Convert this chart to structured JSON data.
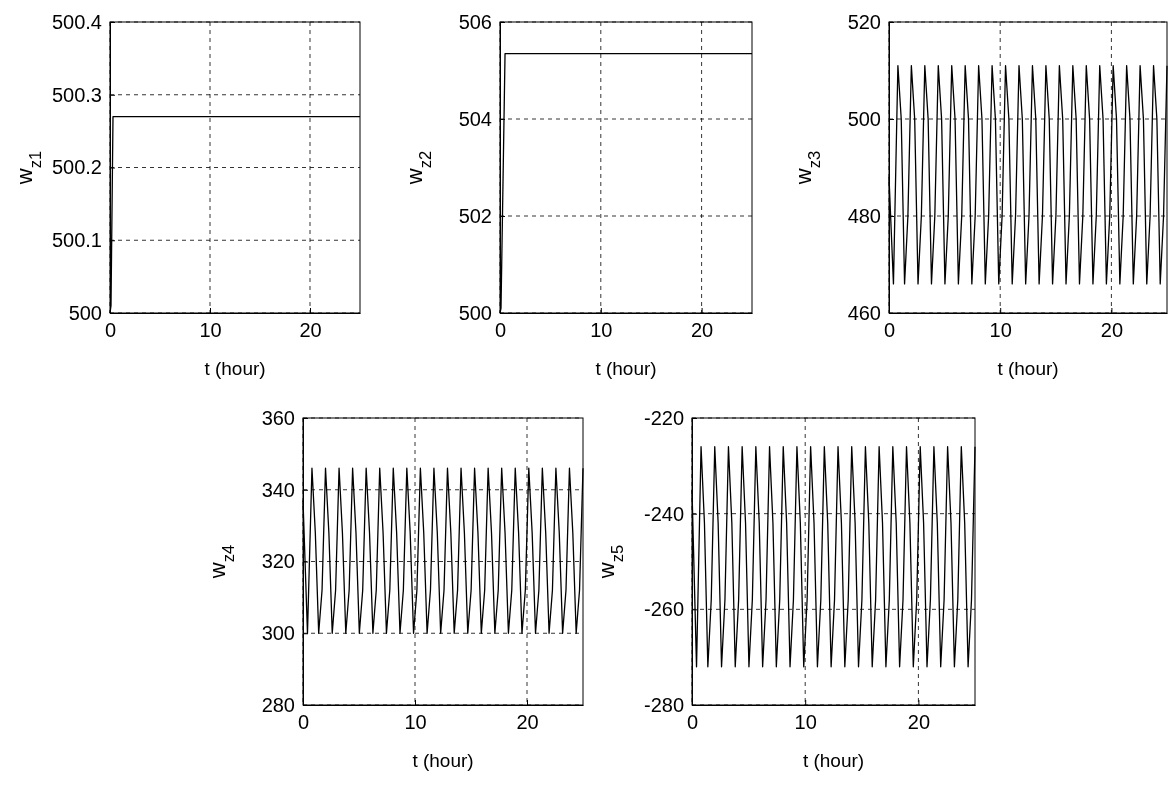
{
  "chart_data": [
    {
      "type": "line",
      "xlabel": "t (hour)",
      "ylabel": "w$_{z1}$",
      "x": [
        0,
        0.1,
        0.3,
        25
      ],
      "xlim": [
        0,
        25
      ],
      "xticks": [
        0,
        10,
        20
      ],
      "ylim": [
        500,
        500.4
      ],
      "yticks": [
        500,
        500.1,
        500.2,
        500.3,
        500.4
      ],
      "grid": true,
      "series": [
        {
          "color": "#000000",
          "values": [
            500,
            500.01,
            500.27,
            500.27
          ]
        }
      ]
    },
    {
      "type": "line",
      "xlabel": "t (hour)",
      "ylabel": "w$_{z2}$",
      "x": [
        0,
        0.1,
        0.5,
        25
      ],
      "xlim": [
        0,
        25
      ],
      "xticks": [
        0,
        10,
        20
      ],
      "ylim": [
        500,
        506
      ],
      "yticks": [
        500,
        502,
        504,
        506
      ],
      "grid": true,
      "series": [
        {
          "color": "#000000",
          "values": [
            500,
            500.1,
            505.35,
            505.35
          ]
        }
      ]
    },
    {
      "type": "line",
      "xlabel": "t (hour)",
      "ylabel": "w$_{z3}$",
      "x": [
        0,
        0.4,
        0.8,
        1.1,
        1.4,
        1.7,
        2.01,
        2.31,
        2.61,
        2.91,
        3.22,
        3.52,
        3.82,
        4.12,
        4.43,
        4.73,
        5.03,
        5.33,
        5.64,
        5.94,
        6.24,
        6.54,
        6.85,
        7.15,
        7.45,
        7.75,
        8.06,
        8.36,
        8.66,
        8.96,
        9.27,
        9.57,
        9.87,
        10.17,
        10.48,
        10.78,
        11.08,
        11.38,
        11.69,
        11.99,
        12.29,
        12.59,
        12.9,
        13.2,
        13.5,
        13.8,
        14.11,
        14.41,
        14.71,
        15.01,
        15.32,
        15.62,
        15.92,
        16.22,
        16.53,
        16.83,
        17.13,
        17.43,
        17.74,
        18.04,
        18.34,
        18.64,
        18.95,
        19.25,
        19.55,
        19.85,
        20.16,
        20.46,
        20.76,
        21.06,
        21.37,
        21.67,
        21.97,
        22.27,
        22.58,
        22.88,
        23.18,
        23.48,
        23.79,
        24.09,
        24.39,
        24.69,
        25
      ],
      "xlim": [
        0,
        25
      ],
      "xticks": [
        0,
        10,
        20
      ],
      "ylim": [
        460,
        520
      ],
      "yticks": [
        460,
        480,
        500,
        520
      ],
      "grid": true,
      "series": [
        {
          "color": "#000000",
          "values": [
            488,
            466,
            511,
            500,
            466,
            480,
            511,
            500,
            466,
            480,
            511,
            500,
            466,
            480,
            511,
            500,
            466,
            480,
            511,
            500,
            466,
            480,
            511,
            500,
            466,
            480,
            511,
            500,
            466,
            480,
            511,
            500,
            466,
            480,
            511,
            500,
            466,
            480,
            511,
            500,
            466,
            480,
            511,
            500,
            466,
            480,
            511,
            500,
            466,
            480,
            511,
            500,
            466,
            480,
            511,
            500,
            466,
            480,
            511,
            500,
            466,
            480,
            511,
            500,
            466,
            480,
            511,
            500,
            466,
            480,
            511,
            500,
            466,
            480,
            511,
            500,
            466,
            480,
            511,
            500,
            466,
            480,
            511
          ]
        }
      ]
    },
    {
      "type": "line",
      "xlabel": "t (hour)",
      "ylabel": "w$_{z4}$",
      "x": [
        0,
        0.4,
        0.8,
        1.1,
        1.4,
        1.7,
        2.01,
        2.31,
        2.61,
        2.91,
        3.22,
        3.52,
        3.82,
        4.12,
        4.43,
        4.73,
        5.03,
        5.33,
        5.64,
        5.94,
        6.24,
        6.54,
        6.85,
        7.15,
        7.45,
        7.75,
        8.06,
        8.36,
        8.66,
        8.96,
        9.27,
        9.57,
        9.87,
        10.17,
        10.48,
        10.78,
        11.08,
        11.38,
        11.69,
        11.99,
        12.29,
        12.59,
        12.9,
        13.2,
        13.5,
        13.8,
        14.11,
        14.41,
        14.71,
        15.01,
        15.32,
        15.62,
        15.92,
        16.22,
        16.53,
        16.83,
        17.13,
        17.43,
        17.74,
        18.04,
        18.34,
        18.64,
        18.95,
        19.25,
        19.55,
        19.85,
        20.16,
        20.46,
        20.76,
        21.06,
        21.37,
        21.67,
        21.97,
        22.27,
        22.58,
        22.88,
        23.18,
        23.48,
        23.79,
        24.09,
        24.39,
        24.69,
        25
      ],
      "xlim": [
        0,
        25
      ],
      "xticks": [
        0,
        10,
        20
      ],
      "ylim": [
        280,
        360
      ],
      "yticks": [
        280,
        300,
        320,
        340,
        360
      ],
      "grid": true,
      "series": [
        {
          "color": "#000000",
          "values": [
            337,
            300,
            346,
            328,
            300,
            312,
            346,
            328,
            300,
            312,
            346,
            328,
            300,
            312,
            346,
            328,
            300,
            312,
            346,
            328,
            300,
            312,
            346,
            328,
            300,
            312,
            346,
            328,
            300,
            312,
            346,
            328,
            300,
            312,
            346,
            328,
            300,
            312,
            346,
            328,
            300,
            312,
            346,
            328,
            300,
            312,
            346,
            328,
            300,
            312,
            346,
            328,
            300,
            312,
            346,
            328,
            300,
            312,
            346,
            328,
            300,
            312,
            346,
            328,
            300,
            312,
            346,
            328,
            300,
            312,
            346,
            328,
            300,
            312,
            346,
            328,
            300,
            312,
            346,
            328,
            300,
            312,
            346
          ]
        }
      ]
    },
    {
      "type": "line",
      "xlabel": "t (hour)",
      "ylabel": "w$_{z5}$",
      "x": [
        0,
        0.4,
        0.8,
        1.1,
        1.4,
        1.7,
        2.01,
        2.31,
        2.61,
        2.91,
        3.22,
        3.52,
        3.82,
        4.12,
        4.43,
        4.73,
        5.03,
        5.33,
        5.64,
        5.94,
        6.24,
        6.54,
        6.85,
        7.15,
        7.45,
        7.75,
        8.06,
        8.36,
        8.66,
        8.96,
        9.27,
        9.57,
        9.87,
        10.17,
        10.48,
        10.78,
        11.08,
        11.38,
        11.69,
        11.99,
        12.29,
        12.59,
        12.9,
        13.2,
        13.5,
        13.8,
        14.11,
        14.41,
        14.71,
        15.01,
        15.32,
        15.62,
        15.92,
        16.22,
        16.53,
        16.83,
        17.13,
        17.43,
        17.74,
        18.04,
        18.34,
        18.64,
        18.95,
        19.25,
        19.55,
        19.85,
        20.16,
        20.46,
        20.76,
        21.06,
        21.37,
        21.67,
        21.97,
        22.27,
        22.58,
        22.88,
        23.18,
        23.48,
        23.79,
        24.09,
        24.39,
        24.69,
        25
      ],
      "xlim": [
        0,
        25
      ],
      "xticks": [
        0,
        10,
        20
      ],
      "ylim": [
        -280,
        -220
      ],
      "yticks": [
        -280,
        -260,
        -240,
        -220
      ],
      "grid": true,
      "series": [
        {
          "color": "#000000",
          "values": [
            -235,
            -272,
            -226,
            -242,
            -272,
            -258,
            -226,
            -242,
            -272,
            -258,
            -226,
            -242,
            -272,
            -258,
            -226,
            -242,
            -272,
            -258,
            -226,
            -242,
            -272,
            -258,
            -226,
            -242,
            -272,
            -258,
            -226,
            -242,
            -272,
            -258,
            -226,
            -242,
            -272,
            -258,
            -226,
            -242,
            -272,
            -258,
            -226,
            -242,
            -272,
            -258,
            -226,
            -242,
            -272,
            -258,
            -226,
            -242,
            -272,
            -258,
            -226,
            -242,
            -272,
            -258,
            -226,
            -242,
            -272,
            -258,
            -226,
            -242,
            -272,
            -258,
            -226,
            -242,
            -272,
            -258,
            -226,
            -242,
            -272,
            -258,
            -226,
            -242,
            -272,
            -258,
            -226,
            -242,
            -272,
            -258,
            -226,
            -242,
            -272,
            -258,
            -226
          ]
        }
      ]
    }
  ]
}
